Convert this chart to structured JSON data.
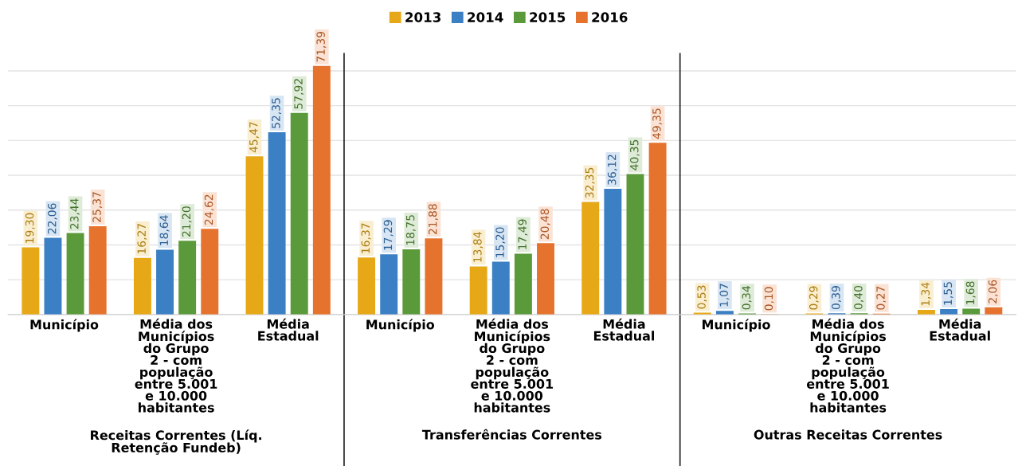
{
  "chart_data": {
    "type": "bar",
    "categories": [
      "Município",
      "Média dos\nMunicípios\ndo Grupo\n2 - com\npopulação\nentre 5.001\ne 10.000\nhabitantes",
      "Média\nEstadual",
      "Município",
      "Média dos\nMunicípios\ndo Grupo\n2 - com\npopulação\nentre 5.001\ne 10.000\nhabitantes",
      "Média\nEstadual",
      "Município",
      "Média dos\nMunicípios\ndo Grupo\n2 - com\npopulação\nentre 5.001\ne 10.000\nhabitantes",
      "Média\nEstadual"
    ],
    "annotations": [
      "Receitas Correntes (Líq.\nRetenção Fundeb)",
      "Transferências Correntes",
      "Outras Receitas Correntes"
    ],
    "tick_labels": "x",
    "grid": "y",
    "legend": "top",
    "series": [
      {
        "name": "2013",
        "color": "#e6a817",
        "values": [
          19.3,
          16.27,
          45.47,
          16.37,
          13.84,
          32.35,
          0.53,
          0.29,
          1.34
        ],
        "value_labels": [
          "19,30",
          "16,27",
          "45,47",
          "16,37",
          "13,84",
          "32,35",
          "0,53",
          "0,29",
          "1,34"
        ]
      },
      {
        "name": "2014",
        "color": "#3b7fc4",
        "values": [
          22.06,
          18.64,
          52.35,
          17.29,
          15.2,
          36.12,
          1.07,
          0.39,
          1.55
        ],
        "value_labels": [
          "22,06",
          "18,64",
          "52,35",
          "17,29",
          "15,20",
          "36,12",
          "1,07",
          "0,39",
          "1,55"
        ]
      },
      {
        "name": "2015",
        "color": "#5a9a3a",
        "values": [
          23.44,
          21.2,
          57.92,
          18.75,
          17.49,
          40.35,
          0.34,
          0.4,
          1.68
        ],
        "value_labels": [
          "23,44",
          "21,20",
          "57,92",
          "18,75",
          "17,49",
          "40,35",
          "0,34",
          "0,40",
          "1,68"
        ]
      },
      {
        "name": "2016",
        "color": "#e5722d",
        "values": [
          25.37,
          24.62,
          71.39,
          21.88,
          20.48,
          49.35,
          0.1,
          0.27,
          2.06
        ],
        "value_labels": [
          "25,37",
          "24,62",
          "71,39",
          "21,88",
          "20,48",
          "49,35",
          "0,10",
          "0,27",
          "2,06"
        ]
      }
    ]
  }
}
